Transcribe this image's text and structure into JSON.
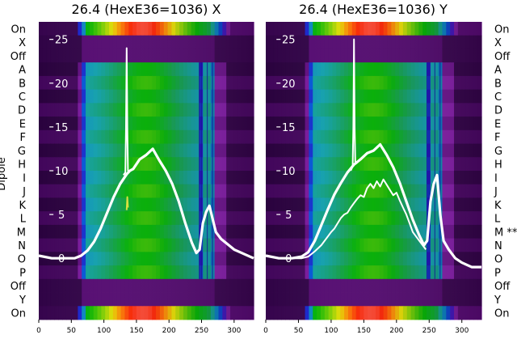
{
  "chart_data": [
    {
      "type": "heatmap",
      "title": "26.4 (HexE36=1036) X",
      "ylabel": "Dipole",
      "row_labels": [
        "On",
        "X",
        "Off",
        "A",
        "B",
        "C",
        "D",
        "E",
        "F",
        "G",
        "H",
        "I",
        "J",
        "K",
        "L",
        "M",
        "N",
        "O",
        "P",
        "Off",
        "Y",
        "On"
      ],
      "xlim": [
        0,
        330
      ],
      "x_ticks": [
        0,
        50,
        100,
        150,
        200,
        250,
        300
      ],
      "overlay_y_ticks": [
        0,
        5,
        10,
        15,
        20,
        25
      ],
      "overlay_ylim": [
        -7,
        27
      ],
      "series": [
        {
          "x": [
            0,
            20,
            40,
            55,
            65,
            75,
            85,
            95,
            105,
            115,
            125,
            135,
            140,
            145,
            155,
            165,
            175,
            185,
            195,
            205,
            215,
            225,
            235,
            242,
            247,
            252,
            257,
            262,
            267,
            272,
            280,
            290,
            300,
            315,
            330
          ],
          "values": [
            0.3,
            0,
            0,
            0,
            0.3,
            0.9,
            1.9,
            3.4,
            5.2,
            7,
            8.5,
            9.6,
            10,
            10.2,
            11.3,
            11.8,
            12.5,
            11.2,
            10,
            8.5,
            6.5,
            4,
            1.8,
            0.6,
            1,
            4,
            5.3,
            6,
            4.5,
            3,
            2.2,
            1.6,
            1,
            0.5,
            0
          ]
        },
        {
          "x": [
            130,
            133,
            134,
            135,
            136,
            137,
            140
          ],
          "values": [
            9.5,
            9.8,
            15,
            24,
            15,
            10,
            10
          ]
        },
        {
          "x": [
            135,
            136,
            137
          ],
          "values": [
            5.5,
            7,
            5.8
          ]
        }
      ]
    },
    {
      "type": "heatmap",
      "title": "26.4 (HexE36=1036) Y",
      "row_labels": [
        "On",
        "X",
        "Off",
        "A",
        "B",
        "C",
        "D",
        "E",
        "F",
        "G",
        "H",
        "I",
        "J",
        "K",
        "L",
        "M **",
        "N",
        "O",
        "P",
        "Off",
        "Y",
        "On"
      ],
      "xlim": [
        0,
        330
      ],
      "x_ticks": [
        0,
        50,
        100,
        150,
        200,
        250,
        300
      ],
      "overlay_y_ticks": [
        0,
        5,
        10,
        15,
        20,
        25
      ],
      "overlay_ylim": [
        -7,
        27
      ],
      "series": [
        {
          "x": [
            0,
            20,
            40,
            55,
            65,
            75,
            85,
            95,
            105,
            115,
            125,
            135,
            140,
            145,
            155,
            165,
            175,
            185,
            195,
            205,
            215,
            225,
            235,
            242,
            247,
            252,
            257,
            262,
            267,
            272,
            280,
            290,
            300,
            315,
            330
          ],
          "values": [
            0.3,
            0,
            0,
            0.2,
            0.7,
            2,
            3.8,
            5.6,
            7.3,
            8.6,
            9.8,
            10.7,
            11,
            11.3,
            12,
            12.3,
            13,
            11.8,
            10.4,
            8.6,
            6.5,
            4.4,
            2.6,
            1.5,
            2,
            6.5,
            8.5,
            9.5,
            5,
            2,
            1,
            0,
            -0.5,
            -1,
            -1
          ]
        },
        {
          "x": [
            40,
            55,
            65,
            75,
            85,
            95,
            100,
            105,
            110,
            115,
            120,
            125,
            130,
            135,
            140,
            145,
            150,
            155,
            160,
            165,
            170,
            175,
            180,
            185,
            190,
            195,
            200,
            205,
            210,
            215,
            220,
            225,
            235,
            245
          ],
          "values": [
            0,
            0,
            0.2,
            0.8,
            1.5,
            2.5,
            3,
            3.4,
            4,
            4.6,
            5,
            5.2,
            5.8,
            6.3,
            6.8,
            7.2,
            7,
            8,
            8.5,
            8,
            8.8,
            8.2,
            9,
            8.4,
            7.8,
            7.2,
            7.5,
            6.6,
            5.8,
            5,
            4,
            3,
            2,
            1
          ]
        },
        {
          "x": [
            130,
            133,
            134,
            135,
            136,
            137,
            140
          ],
          "values": [
            10,
            10.5,
            15,
            25,
            15,
            11,
            11
          ]
        }
      ]
    }
  ]
}
